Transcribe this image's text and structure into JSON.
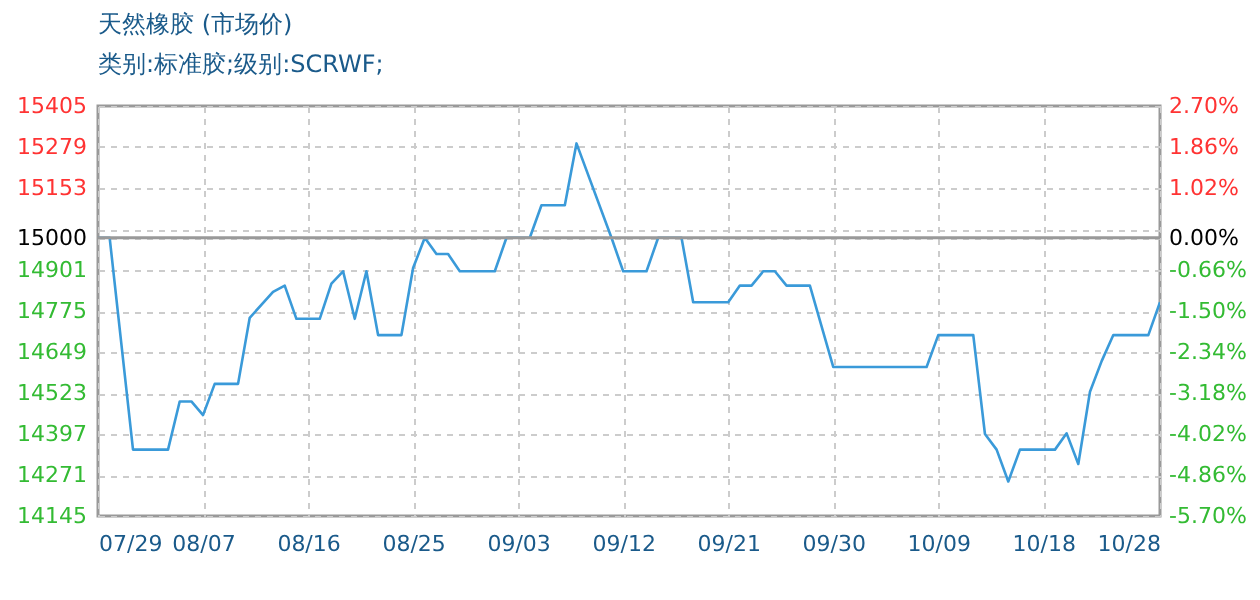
{
  "chart_data": {
    "type": "line",
    "title": "天然橡胶 (市场价)",
    "subtitle": "类别:标准胶;级别:SCRWF;",
    "x": [
      "--07-29",
      "--07-30",
      "--08-01",
      "--08-04",
      "--08-05",
      "--08-06",
      "--08-07",
      "--08-08",
      "--08-10",
      "--08-11",
      "--08-13",
      "--08-14",
      "--08-15",
      "--08-17",
      "--08-18",
      "--08-19",
      "--08-20",
      "--08-21",
      "--08-22",
      "--08-24",
      "--08-25",
      "--08-26",
      "--08-27",
      "--08-28",
      "--08-29",
      "--09-01",
      "--09-02",
      "--09-04",
      "--09-05",
      "--09-07",
      "--09-08",
      "--09-11",
      "--09-12",
      "--09-14",
      "--09-15",
      "--09-17",
      "--09-18",
      "--09-21",
      "--09-22",
      "--09-23",
      "--09-24",
      "--09-25",
      "--09-26",
      "--09-28",
      "--09-30",
      "--10-08",
      "--10-09",
      "--10-12",
      "--10-13",
      "--10-14",
      "--10-15",
      "--10-16",
      "--10-19",
      "--10-20",
      "--10-21",
      "--10-22",
      "--10-23",
      "--10-24",
      "--10-27",
      "--10-28"
    ],
    "series": [
      {
        "color": "#3a9ad9",
        "values": [
          15000,
          15000,
          14349,
          14349,
          14497,
          14497,
          14455,
          14551,
          14551,
          14754,
          14834,
          14853,
          14751,
          14751,
          14859,
          14897,
          14751,
          14897,
          14701,
          14701,
          14907,
          15000,
          14950,
          14950,
          14897,
          14897,
          15000,
          15000,
          15100,
          15100,
          15290,
          15000,
          14897,
          14897,
          15000,
          15000,
          14802,
          14802,
          14853,
          14853,
          14897,
          14897,
          14853,
          14853,
          14603,
          14603,
          14701,
          14701,
          14397,
          14349,
          14251,
          14349,
          14349,
          14399,
          14305,
          14527,
          14621,
          14701,
          14701,
          14802
        ]
      }
    ],
    "xlim": [
      "--07-29",
      "--10-28"
    ],
    "xticks": [
      {
        "value": "--07-29",
        "label": "07/29"
      },
      {
        "value": "--08-07",
        "label": "08/07"
      },
      {
        "value": "--08-16",
        "label": "08/16"
      },
      {
        "value": "--08-25",
        "label": "08/25"
      },
      {
        "value": "--09-03",
        "label": "09/03"
      },
      {
        "value": "--09-12",
        "label": "09/12"
      },
      {
        "value": "--09-21",
        "label": "09/21"
      },
      {
        "value": "--09-30",
        "label": "09/30"
      },
      {
        "value": "--10-09",
        "label": "10/09"
      },
      {
        "value": "--10-18",
        "label": "10/18"
      },
      {
        "value": "--10-28",
        "label": "10/28"
      }
    ],
    "ylim": [
      14145,
      15405
    ],
    "yticks": [
      14145,
      14271,
      14397,
      14523,
      14649,
      14775,
      14901,
      15000,
      {
        "value": 15027,
        "label": null
      },
      15153,
      15279,
      15405
    ],
    "y2lim": [
      -5.7,
      2.7
    ],
    "y2ticks": [
      {
        "value": 2.7,
        "label": "2.70%"
      },
      {
        "value": 1.86,
        "label": "1.86%"
      },
      {
        "value": 1.02,
        "label": "1.02%"
      },
      {
        "value": 0,
        "label": "0.00%"
      },
      {
        "value": -0.66,
        "label": "-0.66%"
      },
      {
        "value": -1.5,
        "label": "-1.50%"
      },
      {
        "value": -2.34,
        "label": "-2.34%"
      },
      {
        "value": -3.18,
        "label": "-3.18%"
      },
      {
        "value": -4.02,
        "label": "-4.02%"
      },
      {
        "value": -4.86,
        "label": "-4.86%"
      },
      {
        "value": -5.7,
        "label": "-5.70%"
      }
    ],
    "ref_lines": [
      {
        "axis": "y2",
        "value": 0,
        "color": "#999999"
      }
    ],
    "grid": true,
    "marker": "none",
    "line_style": "solid"
  }
}
